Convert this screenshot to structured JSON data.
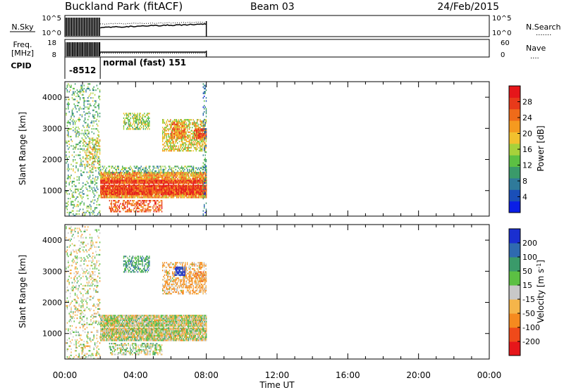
{
  "header": {
    "station": "Buckland Park (fitACF)",
    "beam": "Beam 03",
    "date": "24/Feb/2015"
  },
  "panels": {
    "nsky": {
      "label": "N.Sky",
      "ticks_left": [
        "10^5",
        "10^0"
      ],
      "ticks_right": [
        "10^5",
        "10^0"
      ],
      "right_label": "N.Search",
      "right_key": "......."
    },
    "freq": {
      "label_top": "Freq.",
      "label_bottom": "[MHz]",
      "ticks_left": [
        "18",
        "8"
      ],
      "ticks_right": [
        "60",
        "0"
      ],
      "right_label": "Nave",
      "right_key": "...."
    },
    "cpid": {
      "label": "CPID",
      "segments": [
        {
          "label": "-8512",
          "start": 0.0,
          "end": 2.0
        },
        {
          "label": "normal (fast) 151",
          "start": 2.0,
          "end": 8.0
        }
      ]
    }
  },
  "chart_data": [
    {
      "type": "heatmap",
      "name": "power",
      "ylabel": "Slant Range [km]",
      "xlabel": "",
      "xlim": [
        0,
        24
      ],
      "ylim": [
        180,
        4500
      ],
      "yticks": [
        1000,
        2000,
        3000,
        4000
      ],
      "colorbar": {
        "label": "Power [dB]",
        "ticks": [
          "4",
          "8",
          "12",
          "16",
          "20",
          "24",
          "28"
        ],
        "tick_values": [
          4,
          8,
          12,
          16,
          20,
          24,
          28
        ],
        "range": [
          0,
          32
        ],
        "colors": [
          "#0a1ee6",
          "#1a4fb8",
          "#2f7a9a",
          "#3a9a6a",
          "#5cc043",
          "#a7d13b",
          "#f2c12e",
          "#f59a1f",
          "#ef6b1a",
          "#e83a1a",
          "#e6161a"
        ]
      },
      "regions": [
        {
          "t": [
            0.05,
            2.0
          ],
          "r": [
            200,
            4450
          ],
          "power": 12,
          "density": 0.22
        },
        {
          "t": [
            1.0,
            2.0
          ],
          "r": [
            1700,
            2700
          ],
          "power": 18,
          "density": 0.35
        },
        {
          "t": [
            2.0,
            8.0
          ],
          "r": [
            800,
            1600
          ],
          "power": 22,
          "density": 0.92
        },
        {
          "t": [
            2.0,
            8.0
          ],
          "r": [
            900,
            1350
          ],
          "power": 28,
          "density": 0.95
        },
        {
          "t": [
            2.0,
            8.0
          ],
          "r": [
            1600,
            1800
          ],
          "power": 12,
          "density": 0.4
        },
        {
          "t": [
            2.5,
            5.5
          ],
          "r": [
            350,
            700
          ],
          "power": 26,
          "density": 0.55
        },
        {
          "t": [
            3.3,
            4.8
          ],
          "r": [
            3000,
            3500
          ],
          "power": 15,
          "density": 0.55
        },
        {
          "t": [
            5.5,
            8.0
          ],
          "r": [
            2300,
            3300
          ],
          "power": 18,
          "density": 0.6
        },
        {
          "t": [
            6.0,
            6.8
          ],
          "r": [
            2700,
            3200
          ],
          "power": 24,
          "density": 0.65
        },
        {
          "t": [
            7.3,
            8.0
          ],
          "r": [
            2700,
            3000
          ],
          "power": 28,
          "density": 0.75
        },
        {
          "t": [
            7.8,
            8.0
          ],
          "r": [
            200,
            4450
          ],
          "power": 8,
          "density": 0.3
        }
      ]
    },
    {
      "type": "heatmap",
      "name": "velocity",
      "ylabel": "Slant Range [km]",
      "xlabel": "Time UT",
      "xlim": [
        0,
        24
      ],
      "ylim": [
        180,
        4500
      ],
      "yticks": [
        1000,
        2000,
        3000,
        4000
      ],
      "xticks": [
        0,
        4,
        8,
        12,
        16,
        20,
        24
      ],
      "xticklabels": [
        "00:00",
        "04:00",
        "08:00",
        "12:00",
        "16:00",
        "20:00",
        "00:00"
      ],
      "colorbar": {
        "label": "Velocity [m s-1]",
        "label_main": "Velocity [m s",
        "label_exp": "-1",
        "label_end": "]",
        "ticks": [
          "-200",
          "-100",
          "-50",
          "-15",
          "15",
          "50",
          "100",
          "200"
        ],
        "tick_values": [
          -200,
          -100,
          -50,
          -15,
          15,
          50,
          100,
          200
        ],
        "range": [
          -250,
          250
        ],
        "colors": [
          "#e6161a",
          "#ef4a1a",
          "#f58a1f",
          "#f5b54a",
          "#c8c8c8",
          "#5cc043",
          "#3a9a6a",
          "#2f6ab0",
          "#1a2fd0"
        ]
      },
      "regions": [
        {
          "t": [
            0.05,
            2.0
          ],
          "r": [
            200,
            4450
          ],
          "vel": 0,
          "density": 0.22
        },
        {
          "t": [
            2.0,
            8.0
          ],
          "r": [
            800,
            1600
          ],
          "vel": 0,
          "density": 0.95
        },
        {
          "t": [
            2.0,
            8.0
          ],
          "r": [
            1150,
            1250
          ],
          "vel": 0,
          "density": 0.9
        },
        {
          "t": [
            2.5,
            5.5
          ],
          "r": [
            350,
            700
          ],
          "vel": 10,
          "density": 0.5
        },
        {
          "t": [
            3.3,
            4.8
          ],
          "r": [
            3000,
            3500
          ],
          "vel": 60,
          "density": 0.55
        },
        {
          "t": [
            5.5,
            8.0
          ],
          "r": [
            2300,
            3300
          ],
          "vel": -40,
          "density": 0.55
        },
        {
          "t": [
            6.2,
            6.8
          ],
          "r": [
            2900,
            3150
          ],
          "vel": 220,
          "density": 0.8
        },
        {
          "t": [
            7.3,
            8.0
          ],
          "r": [
            2700,
            3000
          ],
          "vel": -60,
          "density": 0.7
        }
      ]
    }
  ]
}
